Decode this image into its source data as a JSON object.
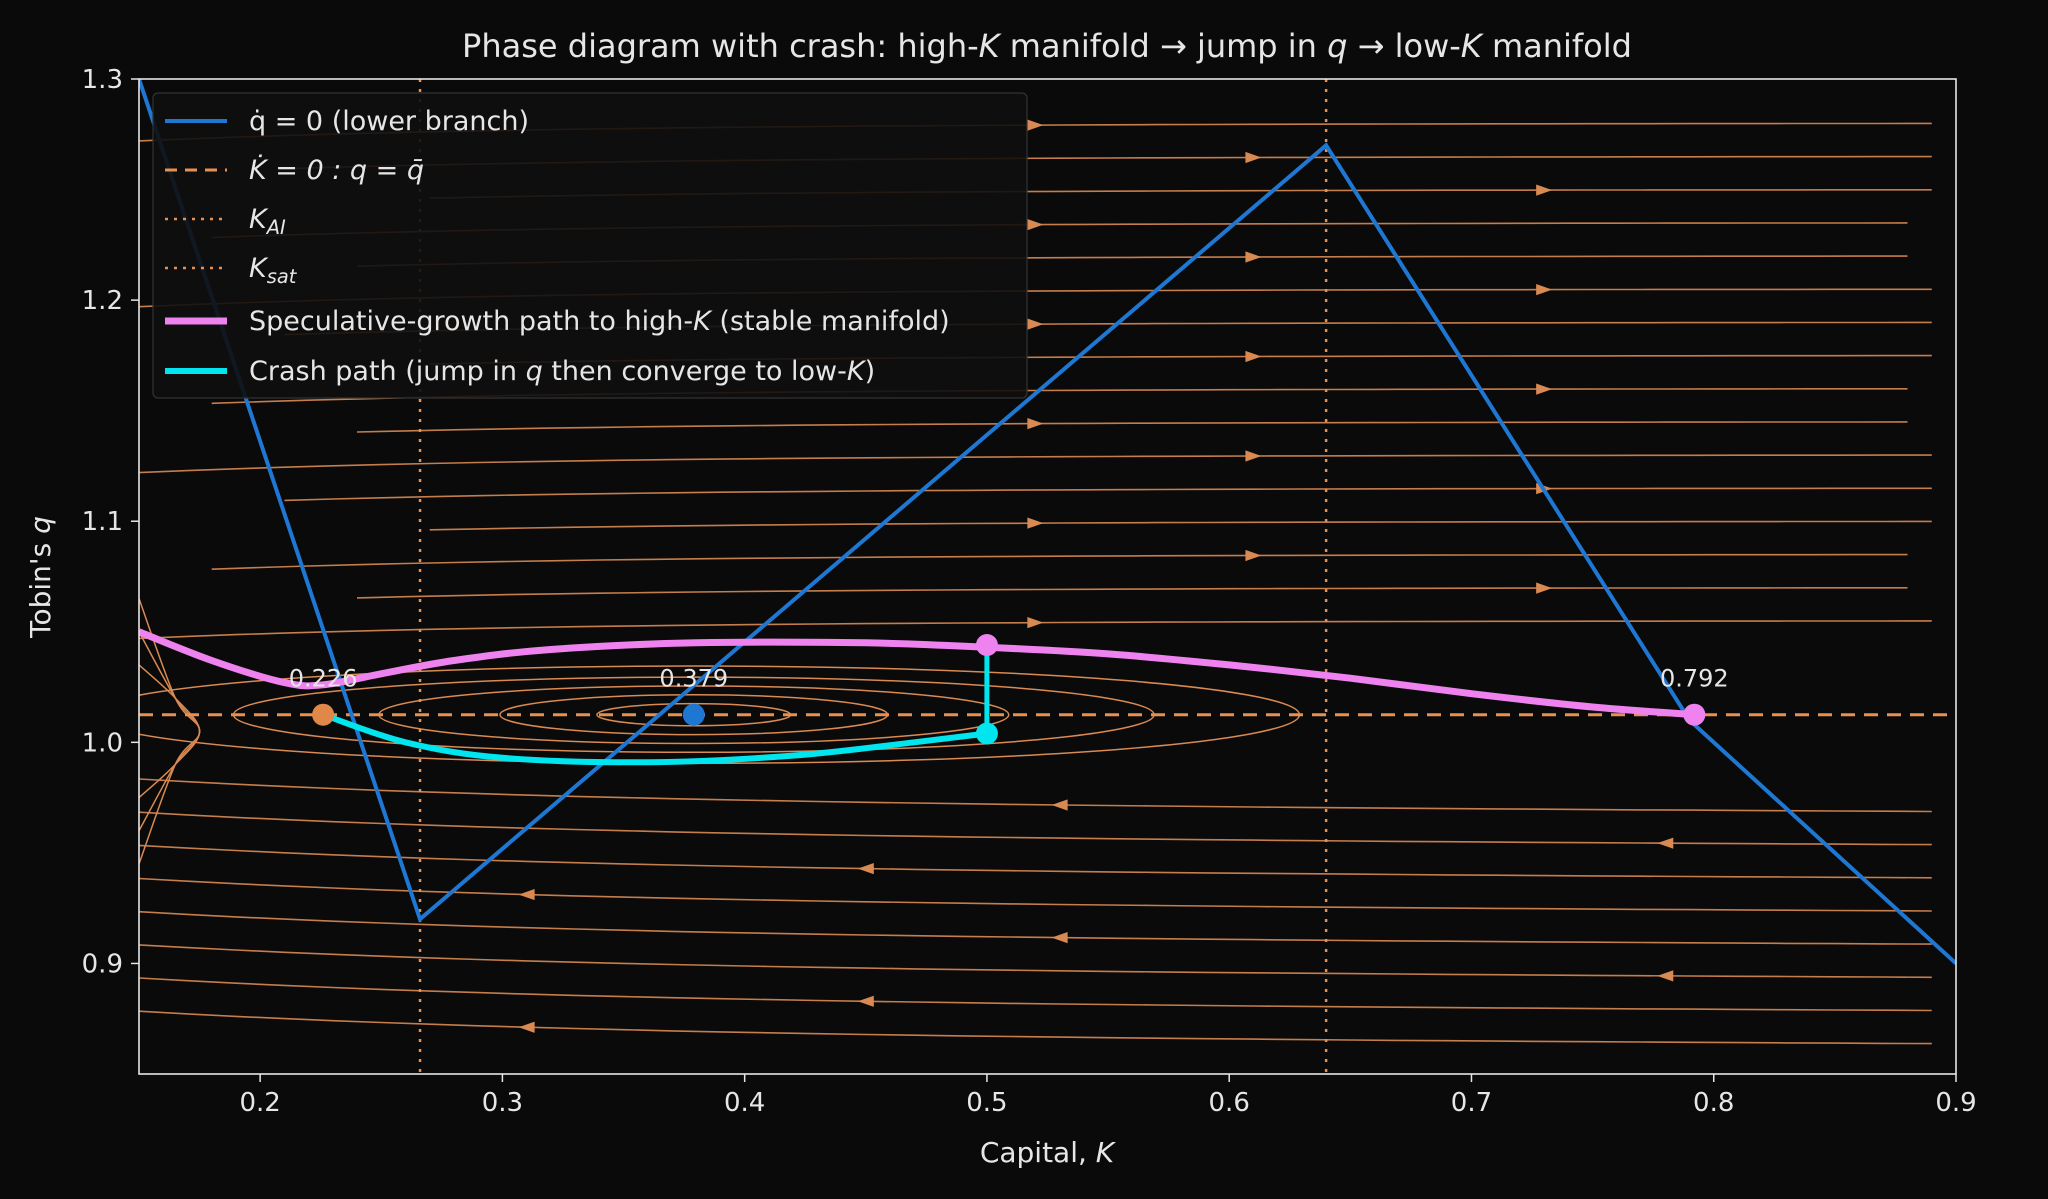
{
  "chart_data": {
    "type": "line",
    "title_parts": [
      "Phase diagram with crash: high-",
      "K",
      " manifold ",
      "→",
      " jump in ",
      "q",
      " ",
      "→",
      " low-",
      "K",
      " manifold"
    ],
    "xlabel_parts": [
      "Capital, ",
      "K"
    ],
    "ylabel_parts": [
      "Tobin's ",
      "q"
    ],
    "xlim": [
      0.15,
      0.9
    ],
    "ylim": [
      0.85,
      1.3
    ],
    "xticks": [
      0.2,
      0.3,
      0.4,
      0.5,
      0.6,
      0.7,
      0.8,
      0.9
    ],
    "yticks": [
      0.9,
      1.0,
      1.1,
      1.2,
      1.3
    ],
    "xtick_labels": [
      "0.2",
      "0.3",
      "0.4",
      "0.5",
      "0.6",
      "0.7",
      "0.8",
      "0.9"
    ],
    "ytick_labels": [
      "0.9",
      "1.0",
      "1.1",
      "1.2",
      "1.3"
    ],
    "grid": false,
    "legend_position": "top-left",
    "colors": {
      "background": "#0a0a0a",
      "axes": "#e6e6e6",
      "text": "#e6e6e6",
      "stream": "#d98a52",
      "qdot_branch": "#1f77d4",
      "kdot": "#e89050",
      "speculative": "#ee82ee",
      "crash": "#00e5ee",
      "equilibrium_low": "#e0884a"
    },
    "qbar": 1.0125,
    "K_AI": 0.266,
    "K_sat": 0.64,
    "series": [
      {
        "name_parts": [
          "q̇ = 0 (lower branch)"
        ],
        "key": "qdot_branch",
        "points": [
          [
            0.15,
            1.3
          ],
          [
            0.266,
            0.92
          ],
          [
            0.64,
            1.27
          ],
          [
            0.79,
            1.01
          ],
          [
            0.9,
            0.9
          ]
        ]
      },
      {
        "name_parts": [
          "K̇ = 0 : q = q̄"
        ],
        "key": "kdot",
        "style": "dashed"
      },
      {
        "name_parts": [
          "K",
          "AI"
        ],
        "key": "kai",
        "style": "dotted"
      },
      {
        "name_parts": [
          "K",
          "sat"
        ],
        "key": "ksat",
        "style": "dotted"
      },
      {
        "name_parts": [
          "Speculative-growth path to high-",
          "K",
          " (stable manifold)"
        ],
        "key": "speculative",
        "points": [
          [
            0.15,
            1.05
          ],
          [
            0.18,
            1.037
          ],
          [
            0.21,
            1.027
          ],
          [
            0.226,
            1.026
          ],
          [
            0.25,
            1.031
          ],
          [
            0.28,
            1.037
          ],
          [
            0.32,
            1.042
          ],
          [
            0.38,
            1.045
          ],
          [
            0.45,
            1.045
          ],
          [
            0.5,
            1.043
          ],
          [
            0.55,
            1.04
          ],
          [
            0.6,
            1.035
          ],
          [
            0.65,
            1.029
          ],
          [
            0.7,
            1.022
          ],
          [
            0.75,
            1.016
          ],
          [
            0.792,
            1.0125
          ]
        ]
      },
      {
        "name_parts": [
          "Crash path (jump in ",
          "q",
          " then converge to low-",
          "K",
          ")"
        ],
        "key": "crash",
        "points": [
          [
            0.5,
            1.044
          ],
          [
            0.5,
            1.004
          ],
          [
            0.47,
            1.0
          ],
          [
            0.42,
            0.994
          ],
          [
            0.36,
            0.991
          ],
          [
            0.3,
            0.993
          ],
          [
            0.26,
            1.0
          ],
          [
            0.226,
            1.0125
          ]
        ]
      }
    ],
    "equilibria": [
      {
        "label": "0.226",
        "x": 0.226,
        "y": 1.0125,
        "key": "equilibrium_low"
      },
      {
        "label": "0.379",
        "x": 0.379,
        "y": 1.0125,
        "key": "qdot_branch"
      },
      {
        "label": "0.792",
        "x": 0.792,
        "y": 1.0125,
        "key": "speculative"
      }
    ],
    "markers": [
      {
        "x": 0.5,
        "y": 1.044,
        "key": "speculative"
      },
      {
        "x": 0.5,
        "y": 1.004,
        "key": "crash"
      }
    ],
    "streamlines": {
      "right_moving_y": [
        1.28,
        1.265,
        1.25,
        1.235,
        1.22,
        1.205,
        1.19,
        1.175,
        1.16,
        1.145,
        1.13,
        1.115,
        1.1,
        1.085,
        1.07,
        1.055
      ],
      "left_moving_y": [
        0.97,
        0.955,
        0.94,
        0.925,
        0.91,
        0.895,
        0.88,
        0.865
      ],
      "orbits": [
        {
          "cx": 0.379,
          "rx": 0.04,
          "ry": 0.005
        },
        {
          "cx": 0.379,
          "rx": 0.08,
          "ry": 0.009
        },
        {
          "cx": 0.379,
          "rx": 0.13,
          "ry": 0.013
        },
        {
          "cx": 0.379,
          "rx": 0.19,
          "ry": 0.017
        },
        {
          "cx": 0.379,
          "rx": 0.25,
          "ry": 0.022
        }
      ]
    }
  }
}
